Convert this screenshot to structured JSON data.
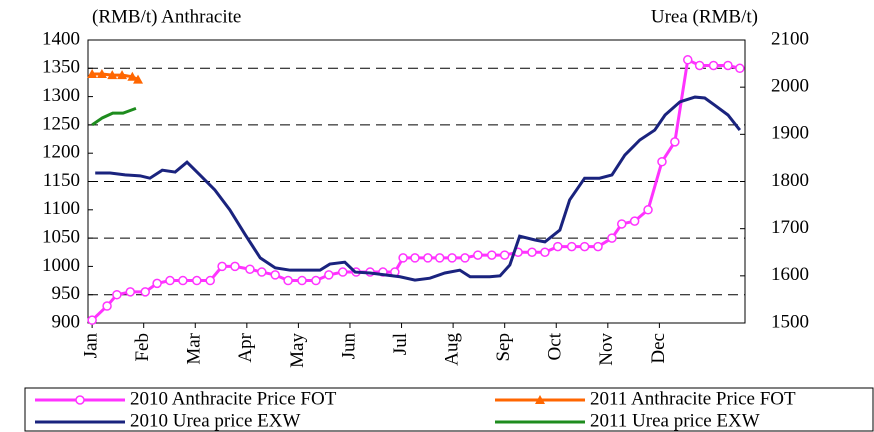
{
  "chart_data": {
    "type": "line",
    "y_label": "(RMB/t) Anthracite",
    "y2_label": "Urea (RMB/t)",
    "xlim": [
      -0.08,
      12.66
    ],
    "xticks": [
      {
        "value": 0,
        "label": "Jan"
      },
      {
        "value": 1,
        "label": "Feb"
      },
      {
        "value": 2,
        "label": "Mar"
      },
      {
        "value": 3,
        "label": "Apr"
      },
      {
        "value": 4,
        "label": "May"
      },
      {
        "value": 5,
        "label": "Jun"
      },
      {
        "value": 6,
        "label": "Jul"
      },
      {
        "value": 7,
        "label": "Aug"
      },
      {
        "value": 8,
        "label": "Sep"
      },
      {
        "value": 9,
        "label": "Oct"
      },
      {
        "value": 10,
        "label": "Nov"
      },
      {
        "value": 11,
        "label": "Dec"
      }
    ],
    "ylim": [
      900,
      1400
    ],
    "yticks": [
      900,
      950,
      1000,
      1050,
      1100,
      1150,
      1200,
      1250,
      1300,
      1350,
      1400
    ],
    "y2lim": [
      1500,
      2100
    ],
    "y2ticks": [
      1500,
      1600,
      1700,
      1800,
      1900,
      2000,
      2100
    ],
    "grid": true,
    "series": [
      {
        "name": "2010 Anthracite Price FOT",
        "color": "#ff33ff",
        "marker": "circle",
        "x": [
          0,
          0.29,
          0.48,
          0.74,
          1.03,
          1.26,
          1.51,
          1.76,
          2.03,
          2.29,
          2.52,
          2.77,
          3.06,
          3.29,
          3.55,
          3.8,
          4.07,
          4.34,
          4.59,
          4.86,
          5.12,
          5.39,
          5.64,
          5.87,
          6.03,
          6.26,
          6.51,
          6.74,
          6.98,
          7.23,
          7.48,
          7.75,
          8.0,
          8.26,
          8.53,
          8.78,
          9.03,
          9.3,
          9.55,
          9.81,
          10.08,
          10.27,
          10.52,
          10.78,
          11.05,
          11.3,
          11.55,
          11.78,
          12.05,
          12.33,
          12.56
        ],
        "values": [
          905,
          930,
          950,
          955,
          955,
          970,
          975,
          975,
          975,
          975,
          1000,
          1000,
          995,
          990,
          985,
          975,
          975,
          975,
          985,
          990,
          990,
          990,
          990,
          990,
          1015,
          1015,
          1015,
          1015,
          1015,
          1015,
          1020,
          1020,
          1020,
          1025,
          1025,
          1025,
          1035,
          1035,
          1035,
          1035,
          1050,
          1075,
          1080,
          1100,
          1185,
          1220,
          1365,
          1355,
          1355,
          1355,
          1350
        ]
      },
      {
        "name": "2011 Anthracite Price FOT",
        "color": "#ff6600",
        "marker": "triangle",
        "x": [
          0,
          0.19,
          0.39,
          0.58,
          0.78,
          0.89
        ],
        "values": [
          1340,
          1340,
          1338,
          1338,
          1335,
          1330
        ]
      },
      {
        "name": "2010 Urea price EXW",
        "color": "#1a237e",
        "axis": "y2",
        "x": [
          0.06,
          0.35,
          0.64,
          0.93,
          1.12,
          1.36,
          1.61,
          1.84,
          2.09,
          2.38,
          2.67,
          2.97,
          3.26,
          3.55,
          3.84,
          4.13,
          4.42,
          4.61,
          4.9,
          5.1,
          5.39,
          5.68,
          5.97,
          6.26,
          6.55,
          6.84,
          7.13,
          7.33,
          7.71,
          7.91,
          8.1,
          8.29,
          8.59,
          8.78,
          9.07,
          9.26,
          9.55,
          9.84,
          10.08,
          10.33,
          10.62,
          10.91,
          11.11,
          11.4,
          11.69,
          11.88,
          12.07,
          12.33,
          12.56
        ],
        "values": [
          1818,
          1818,
          1814,
          1812,
          1807,
          1824,
          1820,
          1841,
          1814,
          1782,
          1740,
          1687,
          1638,
          1617,
          1612,
          1612,
          1612,
          1625,
          1629,
          1608,
          1606,
          1602,
          1598,
          1591,
          1595,
          1606,
          1612,
          1598,
          1598,
          1600,
          1623,
          1684,
          1676,
          1672,
          1697,
          1761,
          1807,
          1807,
          1814,
          1856,
          1888,
          1909,
          1941,
          1969,
          1979,
          1977,
          1962,
          1941,
          1909
        ]
      },
      {
        "name": "2011 Urea price EXW",
        "color": "#1e8c1e",
        "axis": "y2",
        "x": [
          0,
          0.2,
          0.4,
          0.6,
          0.85
        ],
        "values": [
          1920,
          1935,
          1945,
          1945,
          1955
        ]
      }
    ]
  }
}
